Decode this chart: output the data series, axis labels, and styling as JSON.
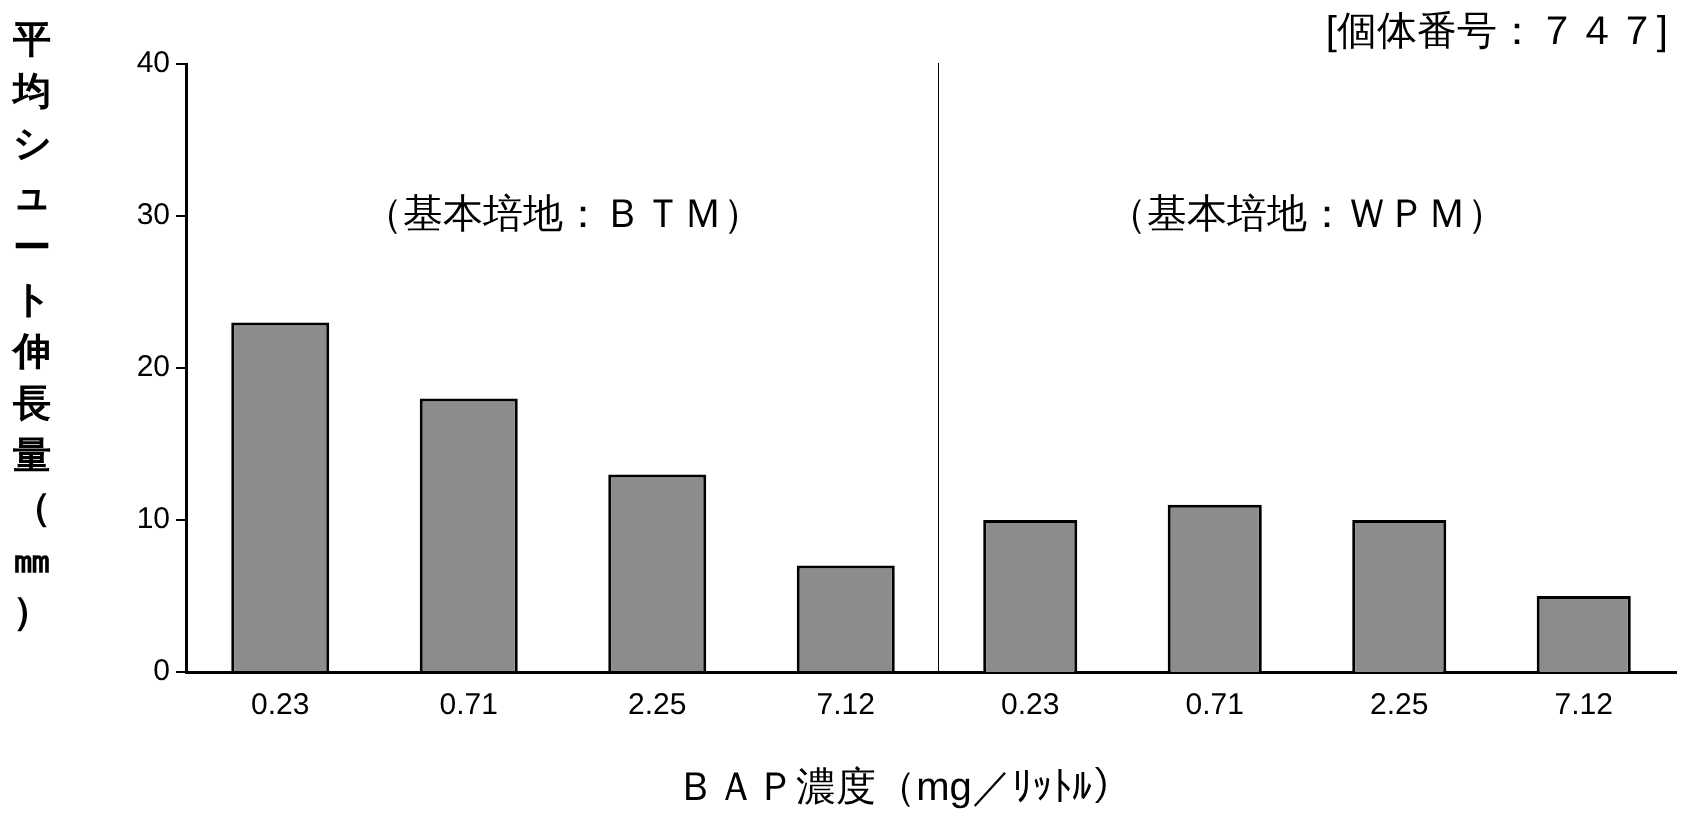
{
  "chart_data": [
    {
      "type": "bar",
      "ylabel": "平均シュート伸長量（㎜）",
      "xlabel": "ＢＡＰ濃度（mg／ﾘｯﾄﾙ）",
      "annotations": [
        "（基本培地：ＢＴＭ）"
      ],
      "categories": [
        "0.23",
        "0.71",
        "2.25",
        "7.12"
      ],
      "values": [
        23,
        18,
        13,
        7
      ],
      "color": "#8c8c8c",
      "ylim": [
        0,
        40
      ],
      "yticks": [
        0,
        10,
        20,
        30,
        40
      ],
      "grid": false,
      "legend": false
    },
    {
      "type": "bar",
      "title": "[個体番号：７４７]",
      "annotations": [
        "（基本培地：ＷＰＭ）"
      ],
      "categories": [
        "0.23",
        "0.71",
        "2.25",
        "7.12"
      ],
      "values": [
        10,
        11,
        10,
        5
      ],
      "color": "#8c8c8c",
      "ylim": [
        0,
        40
      ],
      "yticks": [
        0,
        10,
        20,
        30,
        40
      ],
      "grid": false,
      "legend": false,
      "tick_labels": "x"
    }
  ]
}
